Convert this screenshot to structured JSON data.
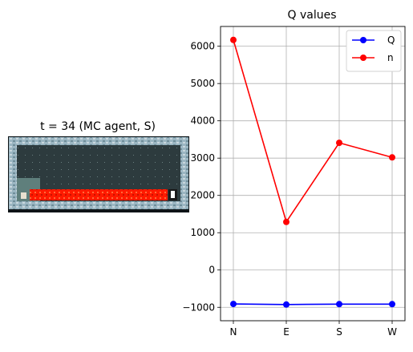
{
  "left_panel": {
    "title": "t = 34 (MC agent, S)"
  },
  "colors": {
    "series_q": "#0000ff",
    "series_n": "#ff0000",
    "grid": "#b0b0b0",
    "wall": "#8aa6b4",
    "floor": "#2d3b3e",
    "lava": "#ff1a00",
    "player_area": "#5f7f7c"
  },
  "chart_data": {
    "type": "line",
    "title": "Q values",
    "xlabel": "",
    "ylabel": "",
    "categories": [
      "N",
      "E",
      "S",
      "W"
    ],
    "series": [
      {
        "name": "Q",
        "values": [
          -910,
          -925,
          -915,
          -915
        ]
      },
      {
        "name": "n",
        "values": [
          6170,
          1290,
          3410,
          3020
        ]
      }
    ],
    "yticks": [
      -1000,
      0,
      1000,
      2000,
      3000,
      4000,
      5000,
      6000
    ],
    "ylim": [
      -1360,
      6530
    ],
    "grid": true,
    "legend": "top-right"
  }
}
